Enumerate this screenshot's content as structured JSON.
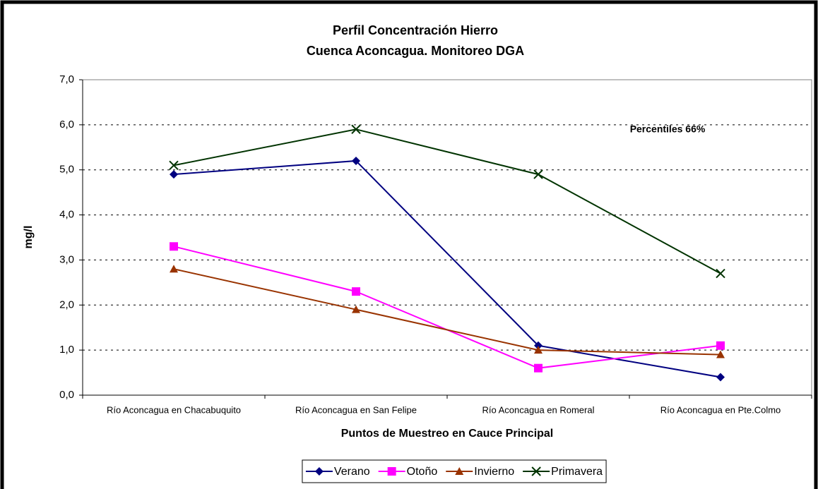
{
  "chart_data": {
    "type": "line",
    "title": "Perfil Concentración Hierro",
    "subtitle": "Cuenca Aconcagua. Monitoreo DGA",
    "y_label": "mg/l",
    "x_label": "Puntos de Muestreo en Cauce Principal",
    "annotation": "Percentiles 66%",
    "categories": [
      "Río Aconcagua en Chacabuquito",
      "Río Aconcagua en San Felipe",
      "Río Aconcagua en Romeral",
      "Río Aconcagua en Pte.Colmo"
    ],
    "series": [
      {
        "name": "Verano",
        "color": "#000080",
        "marker": "diamond",
        "values": [
          4.9,
          5.2,
          1.1,
          0.4
        ]
      },
      {
        "name": "Otoño",
        "color": "#ff00ff",
        "marker": "square",
        "values": [
          3.3,
          2.3,
          0.6,
          1.1
        ]
      },
      {
        "name": "Invierno",
        "color": "#993300",
        "marker": "triangle",
        "values": [
          2.8,
          1.9,
          1.0,
          0.9
        ]
      },
      {
        "name": "Primavera",
        "color": "#003300",
        "marker": "x",
        "values": [
          5.1,
          5.9,
          4.9,
          2.7
        ]
      }
    ],
    "ylim": [
      0,
      7
    ],
    "yticks": [
      {
        "value": 0,
        "label": "0,0"
      },
      {
        "value": 1,
        "label": "1,0"
      },
      {
        "value": 2,
        "label": "2,0"
      },
      {
        "value": 3,
        "label": "3,0"
      },
      {
        "value": 4,
        "label": "4,0"
      },
      {
        "value": 5,
        "label": "5,0"
      },
      {
        "value": 6,
        "label": "6,0"
      },
      {
        "value": 7,
        "label": "7,0"
      }
    ],
    "grid": true,
    "legend": "bottom"
  }
}
